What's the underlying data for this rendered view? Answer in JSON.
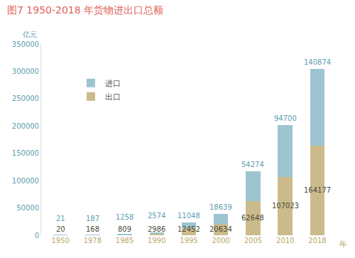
{
  "chart_data": {
    "type": "bar",
    "title": "图7 1950-2018 年货物进出口总额",
    "x_label": "年",
    "y_label": "亿元",
    "categories": [
      "1950",
      "1978",
      "1985",
      "1990",
      "1995",
      "2000",
      "2005",
      "2010",
      "2018"
    ],
    "series": [
      {
        "name": "出口",
        "color": "#cbbb8b",
        "values": [
          20,
          168,
          809,
          2986,
          12452,
          20634,
          62648,
          107023,
          164177
        ]
      },
      {
        "name": "进口",
        "color": "#9dc4d1",
        "values": [
          21,
          187,
          1258,
          2574,
          11048,
          18639,
          54274,
          94700,
          140874
        ]
      }
    ],
    "stacked": true,
    "data_labels": true,
    "legend": "top left",
    "grid": false,
    "ylim": [
      0,
      350000
    ],
    "yticks": [
      0,
      50000,
      100000,
      150000,
      200000,
      250000,
      300000,
      350000
    ]
  }
}
